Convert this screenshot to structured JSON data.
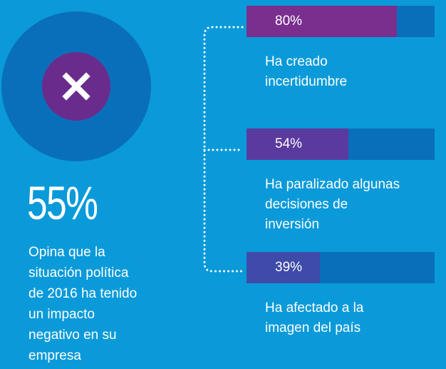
{
  "stat": "55%",
  "caption": "Opina que la\nsituación política\nde 2016 ha tenido\nun impacto\nnegativo en su\nempresa",
  "chart_data": {
    "type": "bar",
    "orientation": "horizontal",
    "categories": [
      "Ha creado\nincertidumbre",
      "Ha paralizado algunas\ndecisiones de\ninversión",
      "Ha afectado a la\nimagen del país"
    ],
    "values": [
      80,
      54,
      39
    ],
    "value_labels": [
      "80%",
      "54%",
      "39%"
    ],
    "colors": [
      "#7a2e8e",
      "#5b3a9f",
      "#3e4ba9"
    ],
    "track_color": "#0a6fba",
    "xlim": [
      0,
      100
    ]
  }
}
